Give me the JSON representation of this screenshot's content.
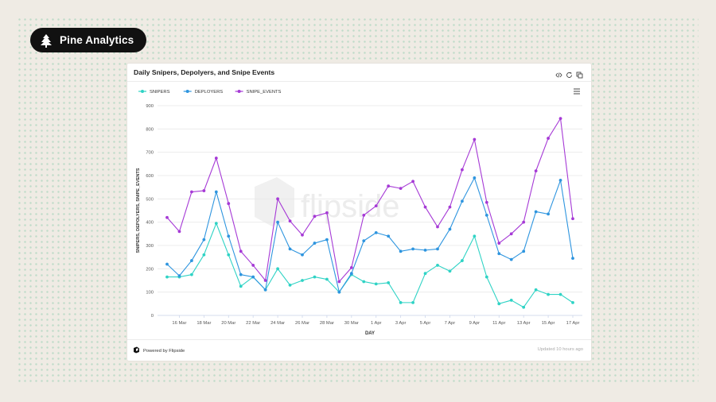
{
  "brand": {
    "name": "Pine Analytics",
    "icon": "pine-tree-icon"
  },
  "card": {
    "title": "Daily Snipers, Depolyers, and Snipe Events",
    "icons": [
      "code-icon",
      "refresh-icon",
      "copy-icon"
    ],
    "footer": {
      "powered": "Powered by Flipside",
      "updated": "Updated 10 hours ago"
    },
    "watermark": "flipside"
  },
  "chart_data": {
    "type": "line",
    "title": "Daily Snipers, Depolyers, and Snipe Events",
    "xlabel": "DAY",
    "ylabel": "SNIPERS, DEPOLYERS, SNIPE_EVENTS",
    "ylim": [
      0,
      900
    ],
    "yticks": [
      0,
      100,
      200,
      300,
      400,
      500,
      600,
      700,
      800,
      900
    ],
    "grid": true,
    "legend_position": "top-left",
    "x": [
      "15 Mar",
      "16 Mar",
      "17 Mar",
      "18 Mar",
      "19 Mar",
      "20 Mar",
      "21 Mar",
      "22 Mar",
      "23 Mar",
      "24 Mar",
      "25 Mar",
      "26 Mar",
      "27 Mar",
      "28 Mar",
      "29 Mar",
      "30 Mar",
      "31 Mar",
      "1 Apr",
      "2 Apr",
      "3 Apr",
      "4 Apr",
      "5 Apr",
      "6 Apr",
      "7 Apr",
      "8 Apr",
      "9 Apr",
      "10 Apr",
      "11 Apr",
      "12 Apr",
      "13 Apr",
      "14 Apr",
      "15 Apr",
      "16 Apr",
      "17 Apr"
    ],
    "xticks": [
      "16 Mar",
      "18 Mar",
      "20 Mar",
      "22 Mar",
      "24 Mar",
      "26 Mar",
      "28 Mar",
      "30 Mar",
      "1 Apr",
      "3 Apr",
      "5 Apr",
      "7 Apr",
      "9 Apr",
      "11 Apr",
      "13 Apr",
      "15 Apr",
      "17 Apr"
    ],
    "series": [
      {
        "name": "SNIPERS",
        "color": "#2fd3c5",
        "values": [
          165,
          165,
          175,
          260,
          395,
          260,
          125,
          165,
          110,
          200,
          130,
          150,
          165,
          155,
          100,
          175,
          145,
          135,
          140,
          55,
          55,
          180,
          215,
          190,
          235,
          340,
          165,
          50,
          65,
          35,
          110,
          90,
          90,
          55
        ]
      },
      {
        "name": "DEPLOYERS",
        "color": "#2e95df",
        "values": [
          220,
          170,
          235,
          325,
          530,
          340,
          175,
          165,
          110,
          400,
          285,
          260,
          310,
          325,
          100,
          180,
          320,
          355,
          340,
          275,
          285,
          280,
          285,
          370,
          490,
          590,
          430,
          265,
          240,
          275,
          445,
          435,
          580,
          245
        ]
      },
      {
        "name": "SNIPE_EVENTS",
        "color": "#a63ad6",
        "values": [
          420,
          360,
          530,
          535,
          675,
          480,
          275,
          215,
          150,
          500,
          405,
          345,
          425,
          440,
          145,
          205,
          430,
          470,
          555,
          545,
          575,
          465,
          380,
          465,
          625,
          755,
          485,
          310,
          350,
          400,
          620,
          760,
          845,
          415
        ]
      }
    ]
  }
}
